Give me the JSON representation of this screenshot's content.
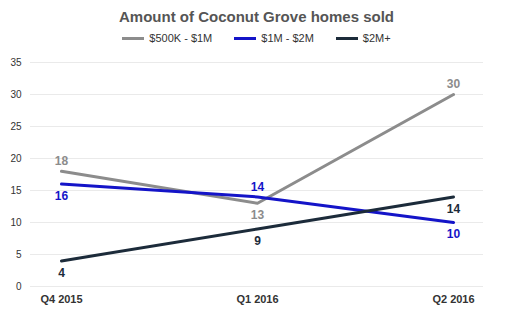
{
  "chart_data": {
    "type": "line",
    "title": "Amount of Coconut Grove homes sold",
    "categories": [
      "Q4 2015",
      "Q1 2016",
      "Q2 2016"
    ],
    "series": [
      {
        "name": "$500K - $1M",
        "color": "#8c8c8c",
        "values": [
          18,
          13,
          30
        ]
      },
      {
        "name": "$1M - $2M",
        "color": "#1414c8",
        "values": [
          16,
          14,
          10
        ]
      },
      {
        "name": "$2M+",
        "color": "#1c2b3a",
        "values": [
          4,
          9,
          14
        ]
      }
    ],
    "ylim": [
      0,
      35
    ],
    "yticks": [
      0,
      5,
      10,
      15,
      20,
      25,
      30,
      35
    ],
    "grid": true,
    "legend": "top",
    "data_labels": true
  }
}
